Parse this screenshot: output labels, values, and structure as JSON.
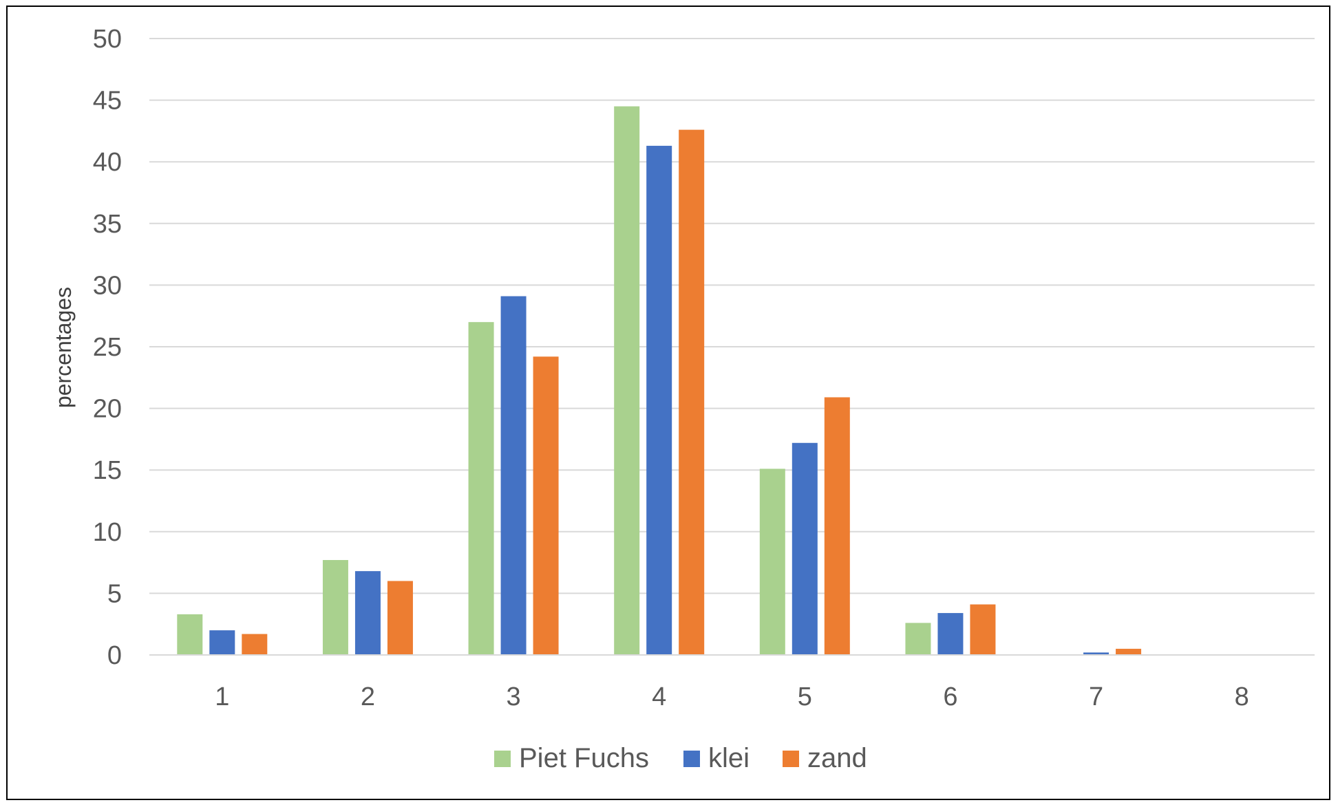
{
  "chart_data": {
    "type": "bar",
    "title": "",
    "xlabel": "",
    "ylabel": "percentages",
    "categories": [
      "1",
      "2",
      "3",
      "4",
      "5",
      "6",
      "7",
      "8"
    ],
    "ylim": [
      0,
      50
    ],
    "yticks": [
      0,
      5,
      10,
      15,
      20,
      25,
      30,
      35,
      40,
      45,
      50
    ],
    "grid": true,
    "legend_position": "bottom",
    "series": [
      {
        "name": "Piet Fuchs",
        "color": "#a9d18e",
        "values": [
          3.3,
          7.7,
          27.0,
          44.5,
          15.1,
          2.6,
          0.0,
          0.0
        ]
      },
      {
        "name": "klei",
        "color": "#4472c4",
        "values": [
          2.0,
          6.8,
          29.1,
          41.3,
          17.2,
          3.4,
          0.2,
          0.0
        ]
      },
      {
        "name": "zand",
        "color": "#ed7d31",
        "values": [
          1.7,
          6.0,
          24.2,
          42.6,
          20.9,
          4.1,
          0.5,
          0.0
        ]
      }
    ]
  }
}
